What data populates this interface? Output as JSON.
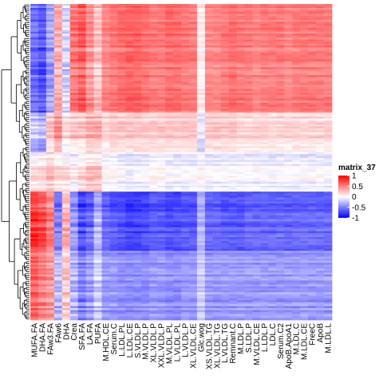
{
  "chart_data": {
    "type": "heatmap",
    "title": "",
    "columns": [
      "MUFA.FA",
      "DHA.FA",
      "FAw3.FA",
      "FAw6",
      "DHA",
      "Crea",
      "SFA.FA",
      "LA.FA",
      "PUFA",
      "M.HDL.CE",
      "Serum.C",
      "L.LDL.PL",
      "L.LDL.CE",
      "S.VLDL.P",
      "M.VLDL.P",
      "XL.VLDL.P",
      "XXL.VLDL.P",
      "M.VLDL.PL",
      "L.VLDL.PL",
      "L.VLDL.P",
      "XL.VLDL.CE",
      "Glc.wog",
      "XS.VLDL.TG",
      "XL.VLDL.TG",
      "L.VLDL.TG",
      "Remnant.C",
      "M.LDL.P",
      "S.LDL.P",
      "M.VLDL.CE",
      "L.LDL.P",
      "LDL.C",
      "Serum.C2",
      "ApoB.ApoA1",
      "M.LDL.C",
      "M.LDL.CE",
      "FreeC",
      "ApoB",
      "M.LDL.L"
    ],
    "col_dendrogram_cut_after": [
      2,
      4,
      8
    ],
    "row_count": 160,
    "row_clusters": [
      {
        "from": 0,
        "to": 55,
        "block_values": [
          -0.6,
          -0.7,
          -0.4,
          0.3,
          -0.2,
          0.5,
          0.6,
          0.4,
          0.2,
          0.45,
          0.5,
          0.55,
          0.6,
          0.6,
          0.55,
          0.5,
          0.5,
          0.55,
          0.55,
          0.5,
          0.5,
          0.05,
          0.45,
          0.45,
          0.5,
          0.55,
          0.5,
          0.5,
          0.45,
          0.5,
          0.5,
          0.5,
          0.45,
          0.5,
          0.5,
          0.5,
          0.5,
          0.5
        ]
      },
      {
        "from": 55,
        "to": 75,
        "block_values": [
          -0.2,
          -0.3,
          0.2,
          0.4,
          0.1,
          0.2,
          0.2,
          0.3,
          0.3,
          0.15,
          0.2,
          0.2,
          0.2,
          0.2,
          0.2,
          0.2,
          0.2,
          0.2,
          0.2,
          0.2,
          0.2,
          -0.1,
          0.2,
          0.2,
          0.2,
          0.2,
          0.15,
          0.15,
          0.15,
          0.15,
          0.15,
          0.15,
          0.15,
          0.15,
          0.15,
          0.15,
          0.15,
          0.15
        ]
      },
      {
        "from": 75,
        "to": 95,
        "block_values": [
          0.1,
          0.1,
          0.2,
          0.1,
          0.1,
          0.0,
          0.1,
          0.2,
          0.2,
          0.0,
          0.0,
          -0.05,
          -0.1,
          -0.05,
          -0.05,
          0.0,
          0.0,
          -0.05,
          -0.05,
          -0.05,
          -0.05,
          0.0,
          -0.05,
          -0.05,
          -0.05,
          -0.05,
          -0.05,
          -0.05,
          -0.05,
          -0.05,
          -0.05,
          -0.05,
          -0.05,
          -0.05,
          -0.05,
          -0.05,
          -0.05,
          -0.05
        ]
      },
      {
        "from": 95,
        "to": 125,
        "block_values": [
          0.8,
          0.7,
          0.5,
          -0.5,
          0.3,
          -0.4,
          -0.7,
          -0.6,
          -0.3,
          -0.6,
          -0.65,
          -0.7,
          -0.75,
          -0.75,
          -0.7,
          -0.65,
          -0.65,
          -0.7,
          -0.7,
          -0.65,
          -0.65,
          -0.3,
          -0.6,
          -0.6,
          -0.65,
          -0.65,
          -0.65,
          -0.6,
          -0.6,
          -0.6,
          -0.6,
          -0.6,
          -0.6,
          -0.6,
          -0.6,
          -0.6,
          -0.6,
          -0.6
        ]
      },
      {
        "from": 125,
        "to": 160,
        "block_values": [
          0.6,
          0.5,
          0.4,
          -0.3,
          0.2,
          -0.3,
          -0.5,
          -0.4,
          -0.2,
          -0.4,
          -0.4,
          -0.45,
          -0.45,
          -0.45,
          -0.45,
          -0.4,
          -0.4,
          -0.45,
          -0.45,
          -0.4,
          -0.4,
          -0.2,
          -0.4,
          -0.4,
          -0.4,
          -0.4,
          -0.4,
          -0.4,
          -0.4,
          -0.4,
          -0.4,
          -0.4,
          -0.4,
          -0.4,
          -0.4,
          -0.4,
          -0.4,
          -0.4
        ]
      }
    ],
    "color_scale": {
      "min": -1,
      "mid": 0,
      "max": 1,
      "low": "#0000ff",
      "midcolor": "#ffffff",
      "high": "#ff0000"
    },
    "legend": {
      "title": "matrix_37",
      "ticks": [
        1,
        0.5,
        0,
        -0.5,
        -1
      ],
      "placement": "right"
    }
  }
}
